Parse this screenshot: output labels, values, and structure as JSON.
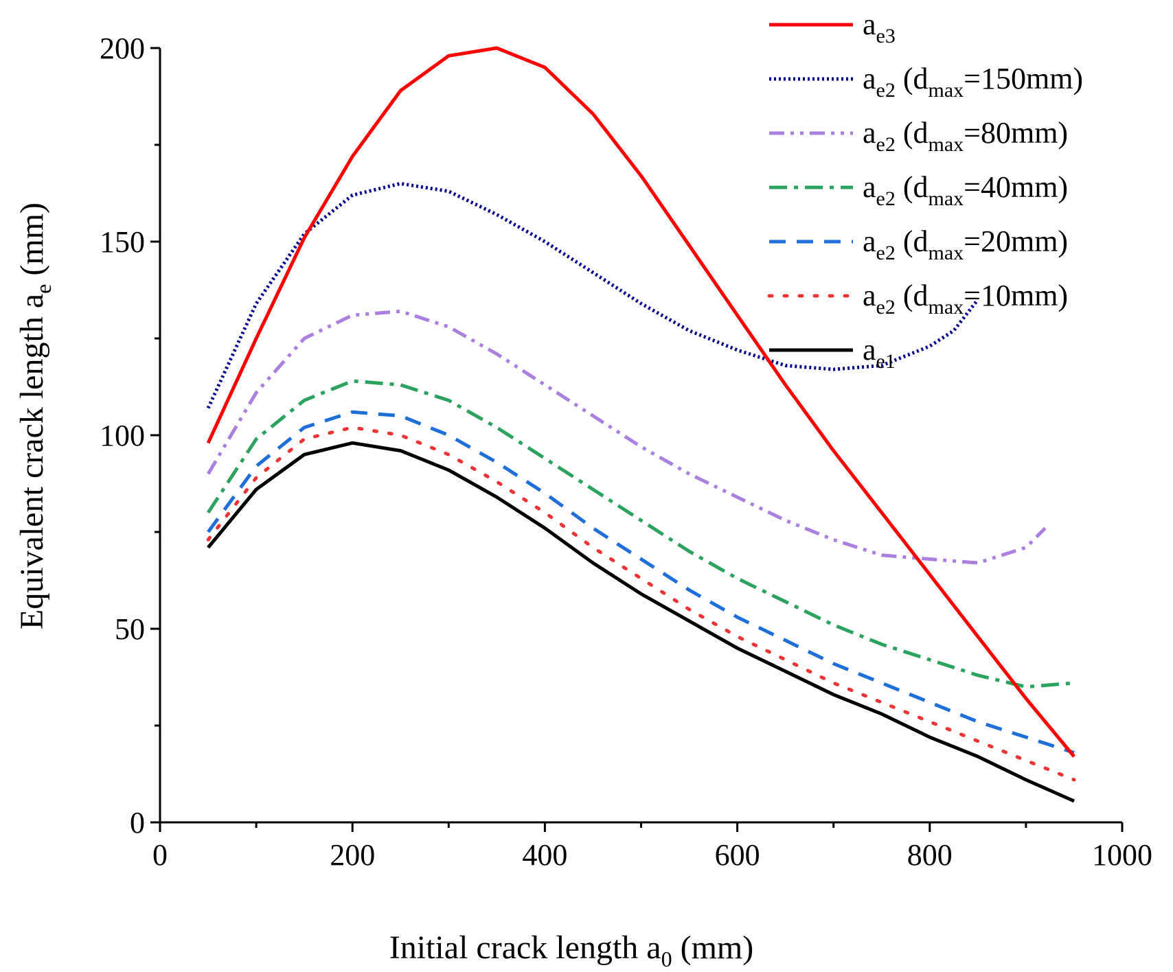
{
  "chart_data": {
    "type": "line",
    "title": "",
    "xlabel": {
      "main": "Initial crack length a",
      "sub": "0",
      "tail": " (mm)"
    },
    "ylabel": {
      "main": "Equivalent crack length a",
      "sub": "e",
      "tail": " (mm)"
    },
    "xlim": [
      0,
      1000
    ],
    "ylim": [
      0,
      200
    ],
    "x_ticks": [
      "0",
      "200",
      "400",
      "600",
      "800",
      "1000"
    ],
    "y_ticks": [
      "0",
      "50",
      "100",
      "150",
      "200"
    ],
    "grid": false,
    "legend_position": "top-right",
    "series": [
      {
        "name": "a_e3",
        "legend": {
          "main": "a",
          "sub": "e3",
          "tail": ""
        },
        "color": "#ff0000",
        "style": "solid",
        "x": [
          50,
          100,
          150,
          200,
          250,
          300,
          350,
          400,
          450,
          500,
          550,
          600,
          650,
          700,
          750,
          800,
          850,
          900,
          950
        ],
        "y": [
          98,
          125,
          151,
          172,
          189,
          198,
          200,
          195,
          183,
          167,
          149,
          131,
          113,
          96,
          80,
          64,
          48,
          32,
          17
        ]
      },
      {
        "name": "a_e2 (d_max=150mm)",
        "legend": {
          "main": "a",
          "sub": "e2",
          "tail": " (d",
          "sub2": "max",
          "tail2": "=150mm)"
        },
        "color": "#00008b",
        "style": "dot",
        "x": [
          50,
          100,
          150,
          200,
          250,
          300,
          350,
          400,
          450,
          500,
          550,
          600,
          650,
          700,
          750,
          800,
          825,
          850
        ],
        "y": [
          107,
          134,
          152,
          162,
          165,
          163,
          157,
          150,
          142,
          134,
          127,
          122,
          118,
          117,
          118,
          123,
          127,
          135
        ]
      },
      {
        "name": "a_e2 (d_max=80mm)",
        "legend": {
          "main": "a",
          "sub": "e2",
          "tail": " (d",
          "sub2": "max",
          "tail2": "=80mm)"
        },
        "color": "#aa7fe0",
        "style": "dashdotdot",
        "x": [
          50,
          100,
          150,
          200,
          250,
          300,
          350,
          400,
          450,
          500,
          550,
          600,
          650,
          700,
          750,
          800,
          850,
          900,
          920
        ],
        "y": [
          90,
          111,
          125,
          131,
          132,
          128,
          121,
          113,
          105,
          97,
          90,
          84,
          78,
          73,
          69,
          68,
          67,
          71,
          76
        ]
      },
      {
        "name": "a_e2 (d_max=40mm)",
        "legend": {
          "main": "a",
          "sub": "e2",
          "tail": " (d",
          "sub2": "max",
          "tail2": "=40mm)"
        },
        "color": "#2ca25f",
        "style": "dashdot",
        "x": [
          50,
          100,
          150,
          200,
          250,
          300,
          350,
          400,
          450,
          500,
          550,
          600,
          650,
          700,
          750,
          800,
          850,
          900,
          950
        ],
        "y": [
          80,
          99,
          109,
          114,
          113,
          109,
          102,
          94,
          86,
          78,
          70,
          63,
          57,
          51,
          46,
          42,
          38,
          35,
          36
        ]
      },
      {
        "name": "a_e2 (d_max=20mm)",
        "legend": {
          "main": "a",
          "sub": "e2",
          "tail": " (d",
          "sub2": "max",
          "tail2": "=20mm)"
        },
        "color": "#1e6fd9",
        "style": "dash",
        "x": [
          50,
          100,
          150,
          200,
          250,
          300,
          350,
          400,
          450,
          500,
          550,
          600,
          650,
          700,
          750,
          800,
          850,
          900,
          950
        ],
        "y": [
          75,
          92,
          102,
          106,
          105,
          100,
          93,
          85,
          76,
          68,
          60,
          53,
          47,
          41,
          36,
          31,
          26,
          22,
          18
        ]
      },
      {
        "name": "a_e2 (d_max=10mm)",
        "legend": {
          "main": "a",
          "sub": "e2",
          "tail": " (d",
          "sub2": "max",
          "tail2": "=10mm)"
        },
        "color": "#ee3333",
        "style": "sparsedot",
        "x": [
          50,
          100,
          150,
          200,
          250,
          300,
          350,
          400,
          450,
          500,
          550,
          600,
          650,
          700,
          750,
          800,
          850,
          900,
          950
        ],
        "y": [
          73,
          89,
          99,
          102,
          100,
          95,
          88,
          80,
          71,
          63,
          55,
          48,
          42,
          36,
          31,
          26,
          21,
          16,
          11
        ]
      },
      {
        "name": "a_e1",
        "legend": {
          "main": "a",
          "sub": "e1",
          "tail": ""
        },
        "color": "#000000",
        "style": "solid",
        "x": [
          50,
          100,
          150,
          200,
          250,
          300,
          350,
          400,
          450,
          500,
          550,
          600,
          650,
          700,
          750,
          800,
          850,
          900,
          950
        ],
        "y": [
          71,
          86,
          95,
          98,
          96,
          91,
          84,
          76,
          67,
          59,
          52,
          45,
          39,
          33,
          28,
          22,
          17,
          11,
          5.5
        ]
      }
    ]
  }
}
